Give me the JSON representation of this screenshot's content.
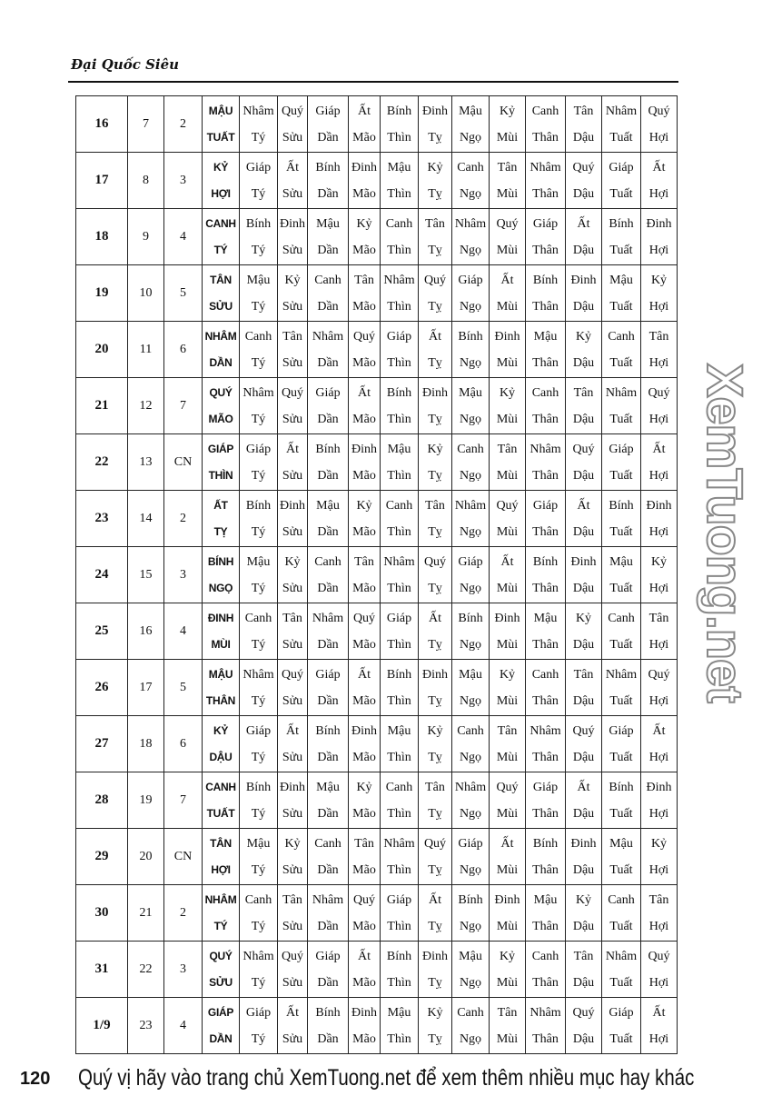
{
  "header": {
    "title": "Đại Quốc Siêu"
  },
  "branches": [
    "Tý",
    "Sửu",
    "Dần",
    "Mão",
    "Thìn",
    "Tỵ",
    "Ngọ",
    "Mùi",
    "Thân",
    "Dậu",
    "Tuất",
    "Hợi"
  ],
  "rows": [
    {
      "day": "16",
      "lunar": "7",
      "weekday": "2",
      "stem": "MẬU",
      "branch": "TUẤT",
      "hours": [
        "Nhâm",
        "Quý",
        "Giáp",
        "Ất",
        "Bính",
        "Đinh",
        "Mậu",
        "Kỷ",
        "Canh",
        "Tân",
        "Nhâm",
        "Quý"
      ]
    },
    {
      "day": "17",
      "lunar": "8",
      "weekday": "3",
      "stem": "KỶ",
      "branch": "HỢI",
      "hours": [
        "Giáp",
        "Ất",
        "Bính",
        "Đinh",
        "Mậu",
        "Kỷ",
        "Canh",
        "Tân",
        "Nhâm",
        "Quý",
        "Giáp",
        "Ất"
      ]
    },
    {
      "day": "18",
      "lunar": "9",
      "weekday": "4",
      "stem": "CANH",
      "branch": "TÝ",
      "hours": [
        "Bính",
        "Đinh",
        "Mậu",
        "Kỷ",
        "Canh",
        "Tân",
        "Nhâm",
        "Quý",
        "Giáp",
        "Ất",
        "Bính",
        "Đinh"
      ]
    },
    {
      "day": "19",
      "lunar": "10",
      "weekday": "5",
      "stem": "TÂN",
      "branch": "SỬU",
      "hours": [
        "Mậu",
        "Kỷ",
        "Canh",
        "Tân",
        "Nhâm",
        "Quý",
        "Giáp",
        "Ất",
        "Bính",
        "Đinh",
        "Mậu",
        "Kỷ"
      ]
    },
    {
      "day": "20",
      "lunar": "11",
      "weekday": "6",
      "stem": "NHÂM",
      "branch": "DẦN",
      "hours": [
        "Canh",
        "Tân",
        "Nhâm",
        "Quý",
        "Giáp",
        "Ất",
        "Bính",
        "Đinh",
        "Mậu",
        "Kỷ",
        "Canh",
        "Tân"
      ]
    },
    {
      "day": "21",
      "lunar": "12",
      "weekday": "7",
      "stem": "QUÝ",
      "branch": "MÃO",
      "hours": [
        "Nhâm",
        "Quý",
        "Giáp",
        "Ất",
        "Bính",
        "Đinh",
        "Mậu",
        "Kỷ",
        "Canh",
        "Tân",
        "Nhâm",
        "Quý"
      ]
    },
    {
      "day": "22",
      "lunar": "13",
      "weekday": "CN",
      "stem": "GIÁP",
      "branch": "THÌN",
      "hours": [
        "Giáp",
        "Ất",
        "Bính",
        "Đinh",
        "Mậu",
        "Kỷ",
        "Canh",
        "Tân",
        "Nhâm",
        "Quý",
        "Giáp",
        "Ất"
      ]
    },
    {
      "day": "23",
      "lunar": "14",
      "weekday": "2",
      "stem": "ẤT",
      "branch": "TỴ",
      "hours": [
        "Bính",
        "Đinh",
        "Mậu",
        "Kỷ",
        "Canh",
        "Tân",
        "Nhâm",
        "Quý",
        "Giáp",
        "Ất",
        "Bính",
        "Đinh"
      ]
    },
    {
      "day": "24",
      "lunar": "15",
      "weekday": "3",
      "stem": "BÍNH",
      "branch": "NGỌ",
      "hours": [
        "Mậu",
        "Kỷ",
        "Canh",
        "Tân",
        "Nhâm",
        "Quý",
        "Giáp",
        "Ất",
        "Bính",
        "Đinh",
        "Mậu",
        "Kỷ"
      ]
    },
    {
      "day": "25",
      "lunar": "16",
      "weekday": "4",
      "stem": "ĐINH",
      "branch": "MÙI",
      "hours": [
        "Canh",
        "Tân",
        "Nhâm",
        "Quý",
        "Giáp",
        "Ất",
        "Bính",
        "Đinh",
        "Mậu",
        "Kỷ",
        "Canh",
        "Tân"
      ]
    },
    {
      "day": "26",
      "lunar": "17",
      "weekday": "5",
      "stem": "MẬU",
      "branch": "THÂN",
      "hours": [
        "Nhâm",
        "Quý",
        "Giáp",
        "Ất",
        "Bính",
        "Đinh",
        "Mậu",
        "Kỷ",
        "Canh",
        "Tân",
        "Nhâm",
        "Quý"
      ]
    },
    {
      "day": "27",
      "lunar": "18",
      "weekday": "6",
      "stem": "KỶ",
      "branch": "DẬU",
      "hours": [
        "Giáp",
        "Ất",
        "Bính",
        "Đinh",
        "Mậu",
        "Kỷ",
        "Canh",
        "Tân",
        "Nhâm",
        "Quý",
        "Giáp",
        "Ất"
      ]
    },
    {
      "day": "28",
      "lunar": "19",
      "weekday": "7",
      "stem": "CANH",
      "branch": "TUẤT",
      "hours": [
        "Bính",
        "Đinh",
        "Mậu",
        "Kỷ",
        "Canh",
        "Tân",
        "Nhâm",
        "Quý",
        "Giáp",
        "Ất",
        "Bính",
        "Đinh"
      ]
    },
    {
      "day": "29",
      "lunar": "20",
      "weekday": "CN",
      "stem": "TÂN",
      "branch": "HỢI",
      "hours": [
        "Mậu",
        "Kỷ",
        "Canh",
        "Tân",
        "Nhâm",
        "Quý",
        "Giáp",
        "Ất",
        "Bính",
        "Đinh",
        "Mậu",
        "Kỷ"
      ]
    },
    {
      "day": "30",
      "lunar": "21",
      "weekday": "2",
      "stem": "NHÂM",
      "branch": "TÝ",
      "hours": [
        "Canh",
        "Tân",
        "Nhâm",
        "Quý",
        "Giáp",
        "Ất",
        "Bính",
        "Đinh",
        "Mậu",
        "Kỷ",
        "Canh",
        "Tân"
      ]
    },
    {
      "day": "31",
      "lunar": "22",
      "weekday": "3",
      "stem": "QUÝ",
      "branch": "SỬU",
      "hours": [
        "Nhâm",
        "Quý",
        "Giáp",
        "Ất",
        "Bính",
        "Đinh",
        "Mậu",
        "Kỷ",
        "Canh",
        "Tân",
        "Nhâm",
        "Quý"
      ]
    },
    {
      "day": "1/9",
      "lunar": "23",
      "weekday": "4",
      "stem": "GIÁP",
      "branch": "DẦN",
      "hours": [
        "Giáp",
        "Ất",
        "Bính",
        "Đinh",
        "Mậu",
        "Kỷ",
        "Canh",
        "Tân",
        "Nhâm",
        "Quý",
        "Giáp",
        "Ất"
      ]
    }
  ],
  "watermark": "XemTuong.net",
  "footer": {
    "page_number": "120",
    "text": "Quý vị hãy vào trang chủ XemTuong.net để xem thêm nhiều mục hay khác"
  }
}
